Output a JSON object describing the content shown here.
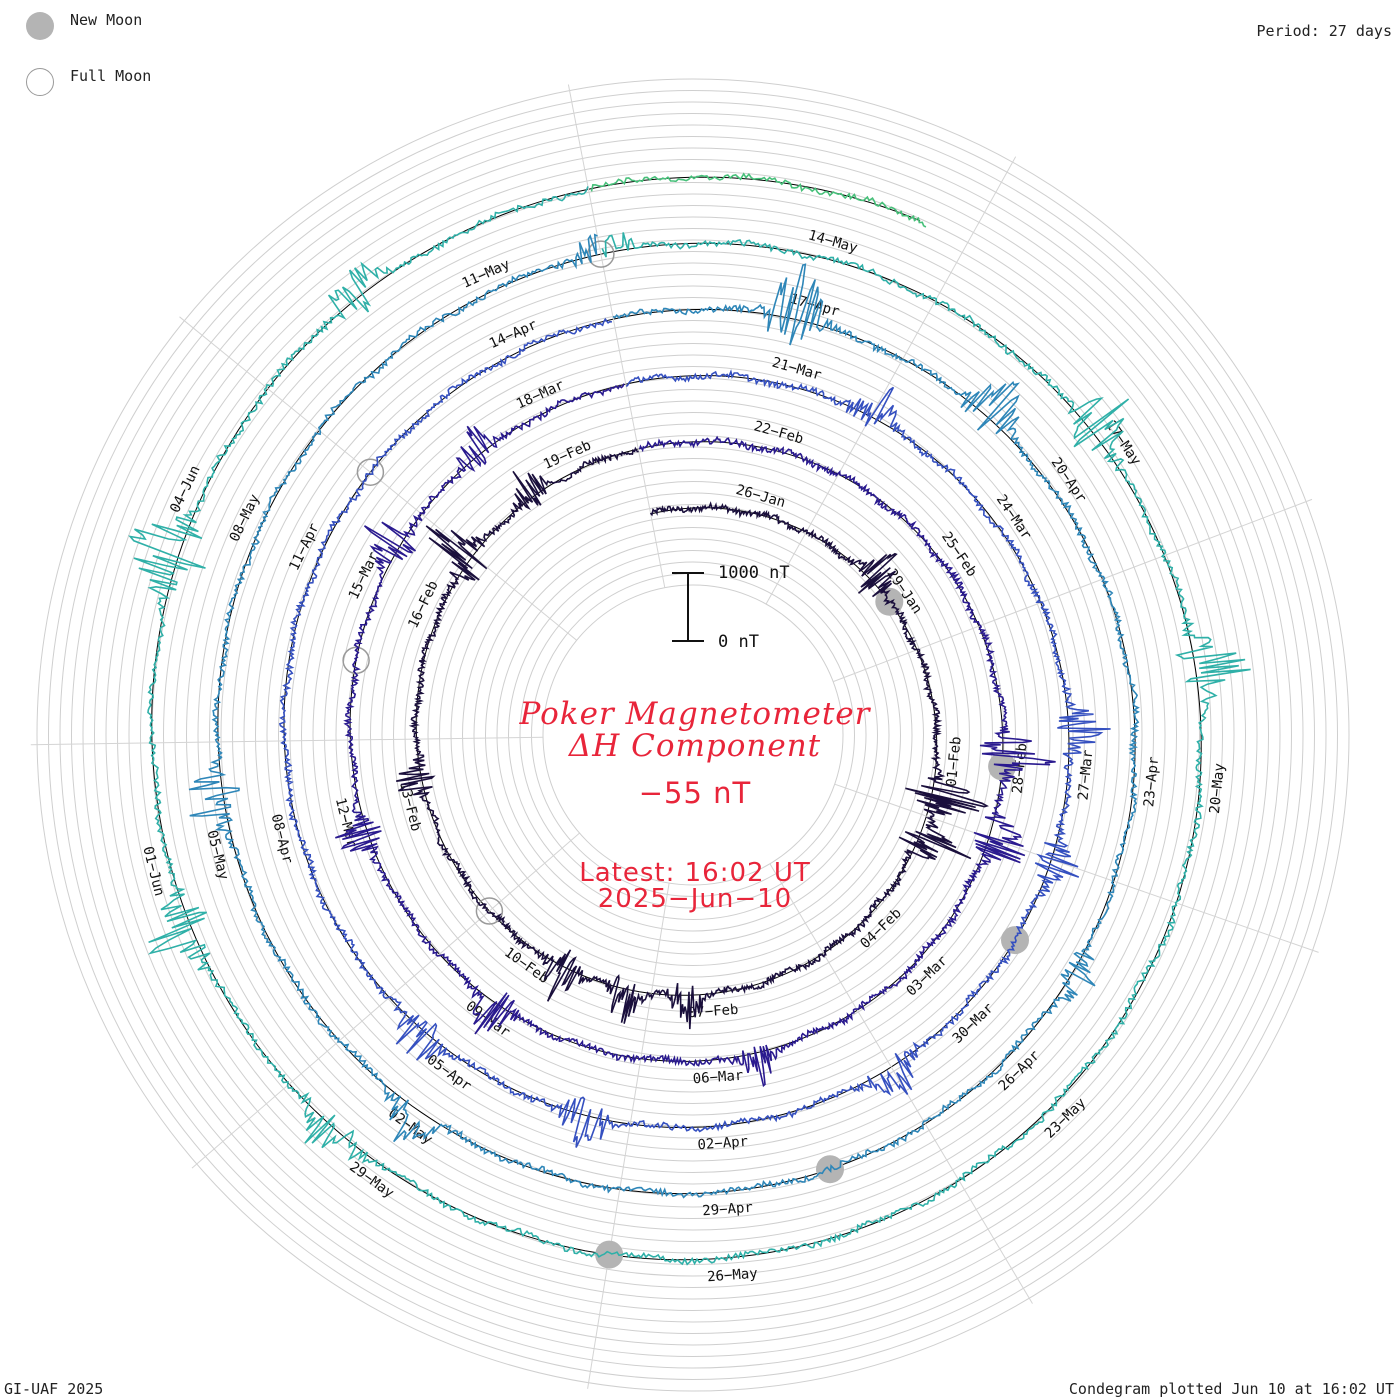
{
  "legend": {
    "new_moon_label": "New Moon",
    "full_moon_label": "Full Moon",
    "new_moon_color": "#b4b4b4",
    "full_moon_color": "#9a9a9a"
  },
  "header": {
    "period_label": "Period: 27 days"
  },
  "title": {
    "line1": "Poker Magnetometer",
    "line2": "ΔH Component",
    "current_value": "−55 nT",
    "latest_label": "Latest: 16:02 UT",
    "latest_date": "2025−Jun−10",
    "color": "#e8253a"
  },
  "scale_bar": {
    "top_label": "1000 nT",
    "bottom_label": "0 nT"
  },
  "footer": {
    "credit": "GI-UAF 2025",
    "plotted": "Condegram plotted Jun 10 at 16:02 UT"
  },
  "chart_data": {
    "type": "line",
    "projection": "spiral condegram",
    "period_days": 27,
    "start_date": "2025-01-24",
    "end_date": "2025-06-10T16:02Z",
    "units": "nT",
    "scale_nT": 1000,
    "latest_value_nT": -55,
    "grid": true,
    "date_labels": [
      {
        "label": "26−Jan",
        "day": 2
      },
      {
        "label": "29−Jan",
        "day": 5
      },
      {
        "label": "01−Feb",
        "day": 8
      },
      {
        "label": "04−Feb",
        "day": 11
      },
      {
        "label": "07−Feb",
        "day": 14
      },
      {
        "label": "10−Feb",
        "day": 17
      },
      {
        "label": "13−Feb",
        "day": 20
      },
      {
        "label": "16−Feb",
        "day": 23
      },
      {
        "label": "19−Feb",
        "day": 26
      },
      {
        "label": "22−Feb",
        "day": 29
      },
      {
        "label": "25−Feb",
        "day": 32
      },
      {
        "label": "28−Feb",
        "day": 35
      },
      {
        "label": "03−Mar",
        "day": 38
      },
      {
        "label": "06−Mar",
        "day": 41
      },
      {
        "label": "09−Mar",
        "day": 44
      },
      {
        "label": "12−Mar",
        "day": 47
      },
      {
        "label": "15−Mar",
        "day": 50
      },
      {
        "label": "18−Mar",
        "day": 53
      },
      {
        "label": "21−Mar",
        "day": 56
      },
      {
        "label": "24−Mar",
        "day": 59
      },
      {
        "label": "27−Mar",
        "day": 62
      },
      {
        "label": "30−Mar",
        "day": 65
      },
      {
        "label": "02−Apr",
        "day": 68
      },
      {
        "label": "05−Apr",
        "day": 71
      },
      {
        "label": "08−Apr",
        "day": 74
      },
      {
        "label": "11−Apr",
        "day": 77
      },
      {
        "label": "14−Apr",
        "day": 80
      },
      {
        "label": "17−Apr",
        "day": 83
      },
      {
        "label": "20−Apr",
        "day": 86
      },
      {
        "label": "23−Apr",
        "day": 89
      },
      {
        "label": "26−Apr",
        "day": 92
      },
      {
        "label": "29−Apr",
        "day": 95
      },
      {
        "label": "02−May",
        "day": 98
      },
      {
        "label": "05−May",
        "day": 101
      },
      {
        "label": "08−May",
        "day": 104
      },
      {
        "label": "11−May",
        "day": 107
      },
      {
        "label": "14−May",
        "day": 110
      },
      {
        "label": "17−May",
        "day": 113
      },
      {
        "label": "20−May",
        "day": 116
      },
      {
        "label": "23−May",
        "day": 119
      },
      {
        "label": "26−May",
        "day": 122
      },
      {
        "label": "29−May",
        "day": 125
      },
      {
        "label": "01−Jun",
        "day": 128
      },
      {
        "label": "04−Jun",
        "day": 131
      }
    ],
    "new_moons": [
      {
        "day": 5
      },
      {
        "day": 35
      },
      {
        "day": 64
      },
      {
        "day": 94
      },
      {
        "day": 123
      }
    ],
    "full_moons": [
      {
        "day": 18
      },
      {
        "day": 49
      },
      {
        "day": 78
      },
      {
        "day": 108
      }
    ],
    "disturbances": [
      {
        "day": 4.5,
        "amp_nT": 700
      },
      {
        "day": 8.6,
        "amp_nT": 900
      },
      {
        "day": 9.4,
        "amp_nT": 750
      },
      {
        "day": 14.4,
        "amp_nT": 500
      },
      {
        "day": 15.4,
        "amp_nT": 550
      },
      {
        "day": 16.5,
        "amp_nT": 600
      },
      {
        "day": 20.4,
        "amp_nT": 450
      },
      {
        "day": 23.9,
        "amp_nT": 750
      },
      {
        "day": 25.3,
        "amp_nT": 400
      },
      {
        "day": 34.8,
        "amp_nT": 900
      },
      {
        "day": 36.0,
        "amp_nT": 800
      },
      {
        "day": 40.5,
        "amp_nT": 500
      },
      {
        "day": 44.0,
        "amp_nT": 500
      },
      {
        "day": 46.8,
        "amp_nT": 450
      },
      {
        "day": 50.5,
        "amp_nT": 600
      },
      {
        "day": 52.0,
        "amp_nT": 500
      },
      {
        "day": 57.0,
        "amp_nT": 500
      },
      {
        "day": 61.5,
        "amp_nT": 600
      },
      {
        "day": 63.0,
        "amp_nT": 500
      },
      {
        "day": 66.0,
        "amp_nT": 450
      },
      {
        "day": 69.5,
        "amp_nT": 550
      },
      {
        "day": 71.5,
        "amp_nT": 500
      },
      {
        "day": 82.8,
        "amp_nT": 900
      },
      {
        "day": 85.0,
        "amp_nT": 600
      },
      {
        "day": 91.0,
        "amp_nT": 400
      },
      {
        "day": 98.0,
        "amp_nT": 500
      },
      {
        "day": 101.5,
        "amp_nT": 600
      },
      {
        "day": 108.0,
        "amp_nT": 400
      },
      {
        "day": 112.8,
        "amp_nT": 700
      },
      {
        "day": 115.0,
        "amp_nT": 800
      },
      {
        "day": 125.5,
        "amp_nT": 500
      },
      {
        "day": 127.5,
        "amp_nT": 750
      },
      {
        "day": 130.5,
        "amp_nT": 900
      },
      {
        "day": 133.0,
        "amp_nT": 500
      }
    ],
    "series_colors": [
      "#1a0f3c",
      "#2a1a8f",
      "#3550c0",
      "#2e86b8",
      "#2fb0a8",
      "#47c07a",
      "#8cc63a",
      "#b8b020",
      "#c08a20",
      "#c05a10",
      "#c02a10"
    ]
  }
}
